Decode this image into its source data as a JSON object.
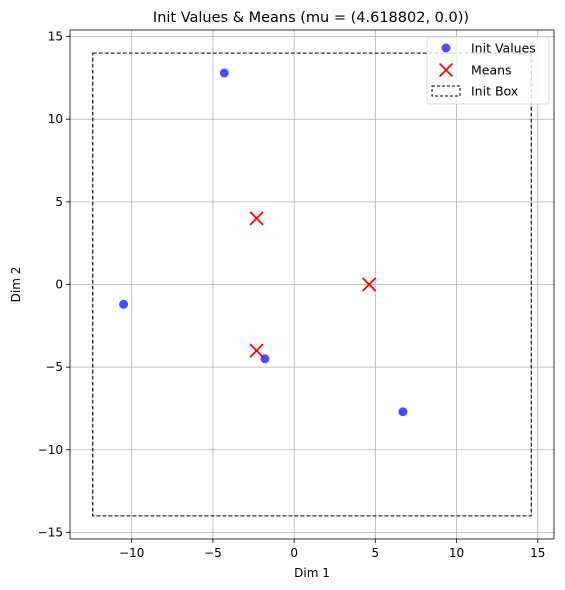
{
  "chart_data": {
    "type": "scatter",
    "title": "Init Values & Means (mu = (4.618802, 0.0))",
    "xlabel": "Dim 1",
    "ylabel": "Dim 2",
    "xlim": [
      -13.8,
      16.0
    ],
    "ylim": [
      -15.4,
      15.4
    ],
    "xticks": [
      -10,
      -5,
      0,
      5,
      10,
      15
    ],
    "yticks": [
      -15,
      -10,
      -5,
      0,
      5,
      10,
      15
    ],
    "xtick_labels": [
      "−10",
      "−5",
      "0",
      "5",
      "10",
      "15"
    ],
    "ytick_labels": [
      "−15",
      "−10",
      "−5",
      "0",
      "5",
      "10",
      "15"
    ],
    "grid": true,
    "legend_position": "top-right",
    "series": [
      {
        "name": "Init Values",
        "marker": "circle",
        "color": "#0000ff",
        "points": [
          {
            "x": -4.3,
            "y": 12.8
          },
          {
            "x": -10.5,
            "y": -1.2
          },
          {
            "x": -1.8,
            "y": -4.5
          },
          {
            "x": 6.7,
            "y": -7.7
          }
        ]
      },
      {
        "name": "Means",
        "marker": "x",
        "color": "#ff0000",
        "points": [
          {
            "x": -2.309401,
            "y": 4.0
          },
          {
            "x": 4.618802,
            "y": 0.0
          },
          {
            "x": -2.309401,
            "y": -4.0
          }
        ]
      }
    ],
    "box": {
      "name": "Init Box",
      "color": "#000000",
      "x_range": [
        -12.4,
        14.6
      ],
      "y_range": [
        -14.0,
        14.0
      ]
    }
  }
}
